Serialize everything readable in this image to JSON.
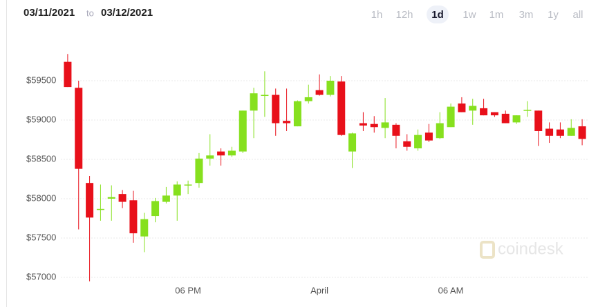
{
  "header": {
    "start_date": "03/11/2021",
    "separator": "to",
    "end_date": "03/12/2021",
    "ranges": [
      "1h",
      "12h",
      "1d",
      "1w",
      "1m",
      "3m",
      "1y",
      "all"
    ],
    "active_range": 2
  },
  "watermark": "coindesk",
  "chart_data": {
    "type": "candlestick",
    "categories": [
      null,
      null,
      null,
      null,
      null,
      null,
      null,
      null,
      null,
      null,
      null,
      "06 PM",
      null,
      null,
      null,
      null,
      null,
      null,
      null,
      null,
      null,
      null,
      null,
      "April",
      null,
      null,
      null,
      null,
      null,
      null,
      null,
      null,
      null,
      null,
      null,
      "06 AM",
      null,
      null,
      null,
      null,
      null,
      null,
      null,
      null,
      null,
      null,
      null,
      null
    ],
    "open": [
      59740,
      59410,
      58200,
      57860,
      58000,
      58060,
      57980,
      57520,
      57780,
      57960,
      58040,
      58170,
      58200,
      58510,
      58600,
      58550,
      58600,
      59120,
      59310,
      59320,
      58990,
      58920,
      59240,
      59380,
      59320,
      59490,
      58600,
      58960,
      58950,
      58900,
      58940,
      58730,
      58640,
      58840,
      58770,
      58910,
      59210,
      59120,
      59150,
      59100,
      59080,
      58970,
      59120,
      59120,
      58890,
      58880,
      58800,
      58920
    ],
    "high": [
      59840,
      59500,
      58290,
      58180,
      58170,
      58110,
      58100,
      57820,
      58010,
      58150,
      58220,
      58230,
      58580,
      58820,
      58640,
      58660,
      59120,
      59410,
      59620,
      59400,
      59400,
      59250,
      59450,
      59580,
      59560,
      59560,
      58840,
      59100,
      59050,
      59280,
      58960,
      58820,
      58880,
      58950,
      59100,
      59210,
      59290,
      59270,
      59270,
      59100,
      59120,
      59060,
      59240,
      59120,
      58970,
      58970,
      59010,
      59010
    ],
    "low": [
      59420,
      57610,
      56950,
      57720,
      57720,
      57880,
      57440,
      57320,
      57700,
      57940,
      57720,
      58060,
      58140,
      58420,
      58420,
      58530,
      58580,
      58770,
      59040,
      58800,
      58860,
      58920,
      59210,
      59310,
      59300,
      58800,
      58390,
      58860,
      58840,
      58770,
      58640,
      58610,
      58610,
      58720,
      58760,
      58910,
      59100,
      58940,
      59060,
      59040,
      58960,
      58950,
      59040,
      58670,
      58710,
      58770,
      58800,
      58680
    ],
    "close": [
      59420,
      58380,
      57760,
      57870,
      58020,
      57960,
      57560,
      57740,
      57970,
      58040,
      58180,
      58180,
      58510,
      58550,
      58550,
      58610,
      59120,
      59340,
      59320,
      58960,
      58960,
      59240,
      59290,
      59320,
      59500,
      58810,
      58830,
      58930,
      58910,
      58970,
      58800,
      58660,
      58810,
      58740,
      58960,
      59170,
      59100,
      59180,
      59060,
      59060,
      58960,
      59060,
      59130,
      58860,
      58800,
      58800,
      58900,
      58760
    ],
    "up_color": "#86e01e",
    "down_color": "#e8101a",
    "ylim": [
      56900,
      60200
    ],
    "yticks": [
      {
        "value": 57000,
        "label": "$57000"
      },
      {
        "value": 57500,
        "label": "$57500"
      },
      {
        "value": 58000,
        "label": "$58000"
      },
      {
        "value": 58500,
        "label": "$58500"
      },
      {
        "value": 59000,
        "label": "$59000"
      },
      {
        "value": 59500,
        "label": "$59500"
      }
    ],
    "grid": true
  }
}
